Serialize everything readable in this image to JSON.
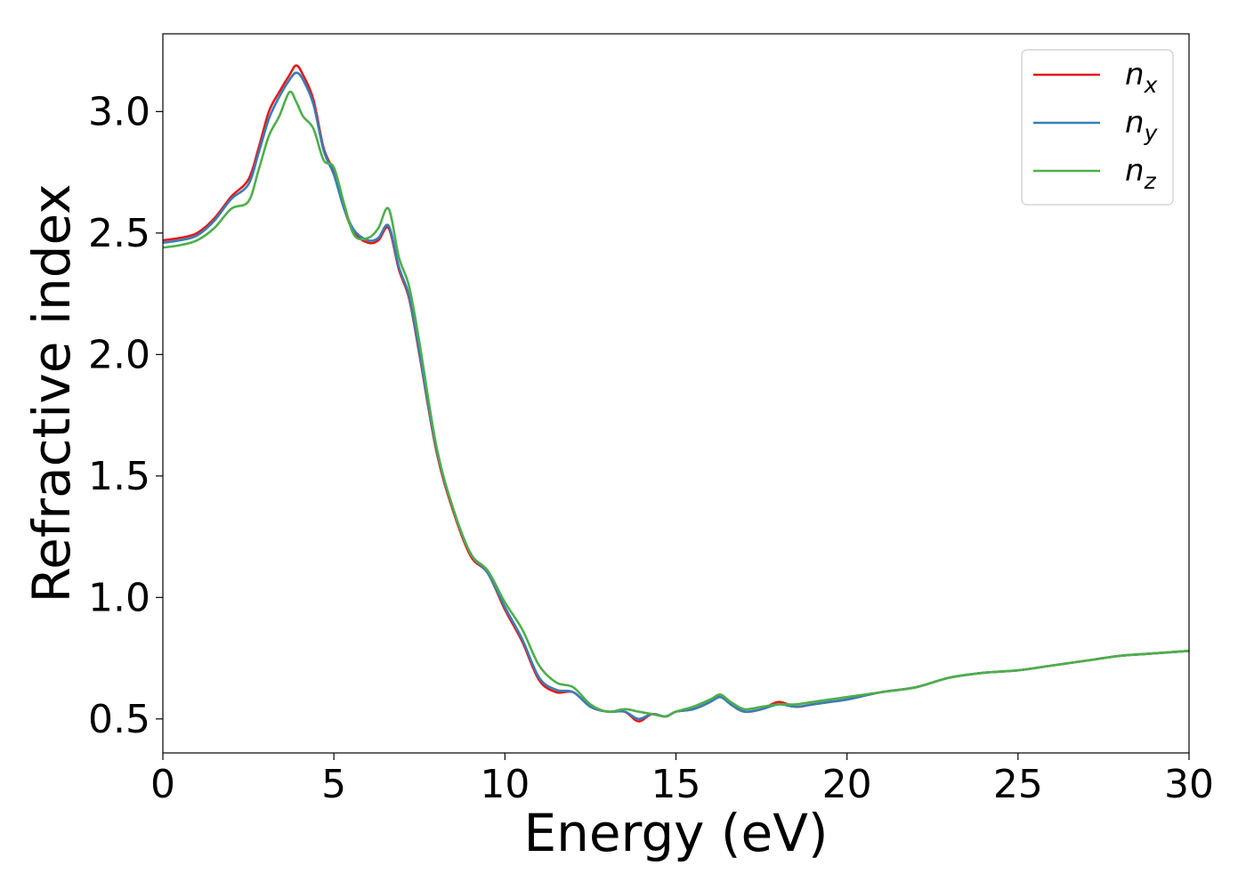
{
  "chart_data": {
    "type": "line",
    "xlabel": "Energy (eV)",
    "ylabel": "Refractive index",
    "xlim": [
      0,
      30
    ],
    "ylim": [
      0.36,
      3.32
    ],
    "xticks": [
      0,
      5,
      10,
      15,
      20,
      25,
      30
    ],
    "yticks": [
      0.5,
      1.0,
      1.5,
      2.0,
      2.5,
      3.0
    ],
    "xtick_labels": [
      "0",
      "5",
      "10",
      "15",
      "20",
      "25",
      "30"
    ],
    "ytick_labels": [
      "0.5",
      "1.0",
      "1.5",
      "2.0",
      "2.5",
      "3.0"
    ],
    "grid": false,
    "legend_position": "top-right",
    "series": [
      {
        "name": "n_x",
        "label_base": "n",
        "label_sub": "x",
        "color": "#e41a1c",
        "x": [
          0,
          0.5,
          1,
          1.5,
          2,
          2.5,
          2.8,
          3.1,
          3.4,
          3.7,
          3.9,
          4.1,
          4.4,
          4.7,
          5.0,
          5.3,
          5.6,
          6.0,
          6.3,
          6.6,
          6.9,
          7.2,
          7.5,
          8.0,
          8.5,
          9.0,
          9.5,
          10.0,
          10.5,
          11.0,
          11.5,
          12.0,
          12.5,
          13.0,
          13.5,
          13.9,
          14.3,
          14.7,
          15.0,
          15.5,
          16.0,
          16.3,
          16.6,
          17.0,
          17.5,
          18.0,
          18.5,
          19.0,
          19.5,
          20.0,
          21.0,
          22.0,
          23.0,
          24.0,
          25.0,
          26.0,
          27.0,
          28.0,
          29.0,
          30.0
        ],
        "y": [
          2.47,
          2.48,
          2.5,
          2.56,
          2.65,
          2.72,
          2.85,
          3.0,
          3.08,
          3.15,
          3.19,
          3.15,
          3.05,
          2.85,
          2.75,
          2.6,
          2.5,
          2.46,
          2.47,
          2.52,
          2.35,
          2.23,
          2.0,
          1.6,
          1.35,
          1.17,
          1.1,
          0.95,
          0.82,
          0.66,
          0.61,
          0.61,
          0.55,
          0.53,
          0.53,
          0.49,
          0.52,
          0.51,
          0.53,
          0.54,
          0.57,
          0.6,
          0.56,
          0.53,
          0.54,
          0.57,
          0.55,
          0.56,
          0.57,
          0.58,
          0.61,
          0.63,
          0.67,
          0.69,
          0.7,
          0.72,
          0.74,
          0.76,
          0.77,
          0.78
        ]
      },
      {
        "name": "n_y",
        "label_base": "n",
        "label_sub": "y",
        "color": "#377eb8",
        "x": [
          0,
          0.5,
          1,
          1.5,
          2,
          2.5,
          2.8,
          3.1,
          3.4,
          3.7,
          3.9,
          4.1,
          4.4,
          4.7,
          5.0,
          5.3,
          5.6,
          6.0,
          6.3,
          6.6,
          6.9,
          7.2,
          7.5,
          8.0,
          8.5,
          9.0,
          9.5,
          10.0,
          10.5,
          11.0,
          11.5,
          12.0,
          12.5,
          13.0,
          13.5,
          13.9,
          14.3,
          14.7,
          15.0,
          15.5,
          16.0,
          16.3,
          16.6,
          17.0,
          17.5,
          18.0,
          18.5,
          19.0,
          19.5,
          20.0,
          21.0,
          22.0,
          23.0,
          24.0,
          25.0,
          26.0,
          27.0,
          28.0,
          29.0,
          30.0
        ],
        "y": [
          2.46,
          2.47,
          2.49,
          2.55,
          2.64,
          2.7,
          2.83,
          2.97,
          3.06,
          3.13,
          3.16,
          3.13,
          3.03,
          2.84,
          2.74,
          2.6,
          2.51,
          2.47,
          2.48,
          2.53,
          2.36,
          2.24,
          2.01,
          1.61,
          1.36,
          1.18,
          1.1,
          0.96,
          0.83,
          0.67,
          0.62,
          0.61,
          0.55,
          0.53,
          0.53,
          0.5,
          0.52,
          0.51,
          0.53,
          0.54,
          0.57,
          0.59,
          0.56,
          0.53,
          0.54,
          0.56,
          0.55,
          0.56,
          0.57,
          0.58,
          0.61,
          0.63,
          0.67,
          0.69,
          0.7,
          0.72,
          0.74,
          0.76,
          0.77,
          0.78
        ]
      },
      {
        "name": "n_z",
        "label_base": "n",
        "label_sub": "z",
        "color": "#4daf4a",
        "x": [
          0,
          0.5,
          1,
          1.5,
          2,
          2.5,
          2.8,
          3.1,
          3.4,
          3.7,
          3.9,
          4.1,
          4.4,
          4.7,
          5.0,
          5.3,
          5.6,
          6.0,
          6.3,
          6.6,
          6.9,
          7.2,
          7.5,
          8.0,
          8.5,
          9.0,
          9.5,
          10.0,
          10.5,
          11.0,
          11.5,
          12.0,
          12.5,
          13.0,
          13.5,
          13.9,
          14.3,
          14.7,
          15.0,
          15.5,
          16.0,
          16.3,
          16.6,
          17.0,
          17.5,
          18.0,
          18.5,
          19.0,
          19.5,
          20.0,
          21.0,
          22.0,
          23.0,
          24.0,
          25.0,
          26.0,
          27.0,
          28.0,
          29.0,
          30.0
        ],
        "y": [
          2.44,
          2.45,
          2.47,
          2.52,
          2.6,
          2.63,
          2.76,
          2.9,
          2.98,
          3.08,
          3.04,
          2.98,
          2.93,
          2.8,
          2.77,
          2.62,
          2.49,
          2.48,
          2.52,
          2.6,
          2.4,
          2.28,
          2.05,
          1.62,
          1.36,
          1.18,
          1.11,
          0.98,
          0.87,
          0.72,
          0.65,
          0.63,
          0.56,
          0.53,
          0.54,
          0.53,
          0.52,
          0.51,
          0.53,
          0.55,
          0.58,
          0.6,
          0.57,
          0.54,
          0.55,
          0.56,
          0.56,
          0.57,
          0.58,
          0.59,
          0.61,
          0.63,
          0.67,
          0.69,
          0.7,
          0.72,
          0.74,
          0.76,
          0.77,
          0.78
        ]
      }
    ]
  }
}
